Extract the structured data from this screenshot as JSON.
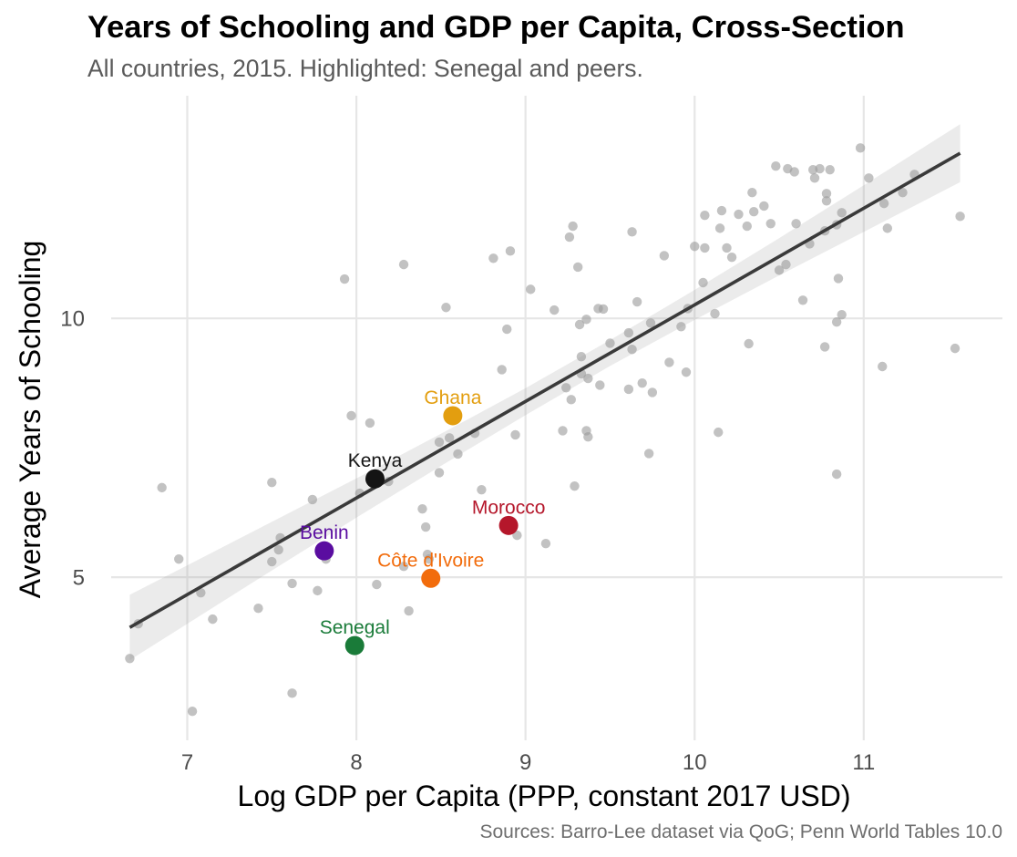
{
  "chart_data": {
    "type": "scatter",
    "title": "Years of Schooling and GDP per Capita, Cross-Section",
    "subtitle": "All countries, 2015. Highlighted: Senegal and peers.",
    "caption": "Sources: Barro-Lee dataset via QoG; Penn World Tables 10.0",
    "xlabel": "Log GDP per Capita (PPP, constant 2017 USD)",
    "ylabel": "Average Years of Schooling",
    "xlim": [
      6.55,
      11.82
    ],
    "ylim": [
      1.85,
      14.3
    ],
    "x_ticks": [
      7,
      8,
      9,
      10,
      11
    ],
    "y_ticks": [
      5,
      10
    ],
    "grid": true,
    "point_color": "#999999",
    "points": [
      [
        6.66,
        3.43
      ],
      [
        6.71,
        4.1
      ],
      [
        6.85,
        6.73
      ],
      [
        6.95,
        5.35
      ],
      [
        7.03,
        2.41
      ],
      [
        7.08,
        4.7
      ],
      [
        7.15,
        4.19
      ],
      [
        7.42,
        4.4
      ],
      [
        7.5,
        6.83
      ],
      [
        7.5,
        5.3
      ],
      [
        7.54,
        5.53
      ],
      [
        7.55,
        5.76
      ],
      [
        7.62,
        2.76
      ],
      [
        7.62,
        4.88
      ],
      [
        7.74,
        6.5
      ],
      [
        7.77,
        4.74
      ],
      [
        7.82,
        5.35
      ],
      [
        7.93,
        10.76
      ],
      [
        7.97,
        8.12
      ],
      [
        8.02,
        6.62
      ],
      [
        8.08,
        7.98
      ],
      [
        8.12,
        4.86
      ],
      [
        8.19,
        6.85
      ],
      [
        8.28,
        11.04
      ],
      [
        8.28,
        5.21
      ],
      [
        8.31,
        4.35
      ],
      [
        8.39,
        6.32
      ],
      [
        8.41,
        5.97
      ],
      [
        8.42,
        5.44
      ],
      [
        8.43,
        5.35
      ],
      [
        8.49,
        7.61
      ],
      [
        8.49,
        7.02
      ],
      [
        8.53,
        10.21
      ],
      [
        8.55,
        7.69
      ],
      [
        8.6,
        7.38
      ],
      [
        8.7,
        7.78
      ],
      [
        8.74,
        6.69
      ],
      [
        8.81,
        11.16
      ],
      [
        8.86,
        9.01
      ],
      [
        8.89,
        9.79
      ],
      [
        8.91,
        11.3
      ],
      [
        8.94,
        7.75
      ],
      [
        8.95,
        5.81
      ],
      [
        9.03,
        10.56
      ],
      [
        9.12,
        5.65
      ],
      [
        9.17,
        10.16
      ],
      [
        9.22,
        7.83
      ],
      [
        9.24,
        8.66
      ],
      [
        9.26,
        11.57
      ],
      [
        9.28,
        11.78
      ],
      [
        9.27,
        8.43
      ],
      [
        9.29,
        6.76
      ],
      [
        9.31,
        10.99
      ],
      [
        9.32,
        9.88
      ],
      [
        9.33,
        9.26
      ],
      [
        9.33,
        8.93
      ],
      [
        9.36,
        7.83
      ],
      [
        9.36,
        9.98
      ],
      [
        9.37,
        8.84
      ],
      [
        9.37,
        7.71
      ],
      [
        9.43,
        10.19
      ],
      [
        9.44,
        8.71
      ],
      [
        9.46,
        10.18
      ],
      [
        9.5,
        9.52
      ],
      [
        9.61,
        8.63
      ],
      [
        9.61,
        9.72
      ],
      [
        9.63,
        11.67
      ],
      [
        9.63,
        9.4
      ],
      [
        9.66,
        10.32
      ],
      [
        9.69,
        8.75
      ],
      [
        9.74,
        9.91
      ],
      [
        9.73,
        7.39
      ],
      [
        9.75,
        8.57
      ],
      [
        9.82,
        11.21
      ],
      [
        9.85,
        9.15
      ],
      [
        9.92,
        9.84
      ],
      [
        9.95,
        8.96
      ],
      [
        9.96,
        10.19
      ],
      [
        10.0,
        11.39
      ],
      [
        10.05,
        10.69
      ],
      [
        10.06,
        11.99
      ],
      [
        10.06,
        11.36
      ],
      [
        10.12,
        10.09
      ],
      [
        10.14,
        7.8
      ],
      [
        10.15,
        11.74
      ],
      [
        10.16,
        12.08
      ],
      [
        10.19,
        11.36
      ],
      [
        10.22,
        11.18
      ],
      [
        10.26,
        12.01
      ],
      [
        10.31,
        11.78
      ],
      [
        10.32,
        9.51
      ],
      [
        10.34,
        12.43
      ],
      [
        10.35,
        12.06
      ],
      [
        10.41,
        12.17
      ],
      [
        10.45,
        11.83
      ],
      [
        10.48,
        12.94
      ],
      [
        10.5,
        10.93
      ],
      [
        10.54,
        11.04
      ],
      [
        10.55,
        12.89
      ],
      [
        10.59,
        12.83
      ],
      [
        10.6,
        11.83
      ],
      [
        10.64,
        10.35
      ],
      [
        10.68,
        11.44
      ],
      [
        10.7,
        12.87
      ],
      [
        10.71,
        12.71
      ],
      [
        10.74,
        12.89
      ],
      [
        10.77,
        11.69
      ],
      [
        10.78,
        12.41
      ],
      [
        10.78,
        12.27
      ],
      [
        10.77,
        9.45
      ],
      [
        10.8,
        12.87
      ],
      [
        10.84,
        11.81
      ],
      [
        10.84,
        9.93
      ],
      [
        10.84,
        6.99
      ],
      [
        10.85,
        10.77
      ],
      [
        10.87,
        10.07
      ],
      [
        10.87,
        12.04
      ],
      [
        10.98,
        13.29
      ],
      [
        11.03,
        12.71
      ],
      [
        11.11,
        9.07
      ],
      [
        11.12,
        12.22
      ],
      [
        11.14,
        11.74
      ],
      [
        11.23,
        12.43
      ],
      [
        11.3,
        12.78
      ],
      [
        11.54,
        9.42
      ],
      [
        11.57,
        11.97
      ]
    ],
    "fit": {
      "x": [
        6.66,
        11.57
      ],
      "y": [
        4.03,
        13.19
      ],
      "color": "#3a3a3a"
    },
    "ci_band": {
      "x": [
        6.66,
        7.0,
        7.5,
        8.0,
        8.5,
        9.0,
        9.5,
        10.0,
        10.5,
        11.0,
        11.57
      ],
      "lo": [
        3.4,
        4.1,
        5.13,
        6.15,
        7.15,
        8.13,
        9.08,
        9.97,
        10.83,
        11.67,
        12.63
      ],
      "hi": [
        4.66,
        5.23,
        6.07,
        6.91,
        7.77,
        8.65,
        9.58,
        10.55,
        11.55,
        12.57,
        13.75
      ],
      "color": "#999999"
    },
    "highlighted": [
      {
        "name": "Ghana",
        "x": 8.57,
        "y": 8.12,
        "color": "#e39e0f"
      },
      {
        "name": "Kenya",
        "x": 8.11,
        "y": 6.9,
        "color": "#141414"
      },
      {
        "name": "Morocco",
        "x": 8.9,
        "y": 6.0,
        "color": "#b5172b"
      },
      {
        "name": "Benin",
        "x": 7.81,
        "y": 5.51,
        "color": "#5a0da0"
      },
      {
        "name": "Côte d'Ivoire",
        "x": 8.44,
        "y": 4.98,
        "color": "#f26c0c"
      },
      {
        "name": "Senegal",
        "x": 7.99,
        "y": 3.68,
        "color": "#1a7b39"
      }
    ]
  }
}
